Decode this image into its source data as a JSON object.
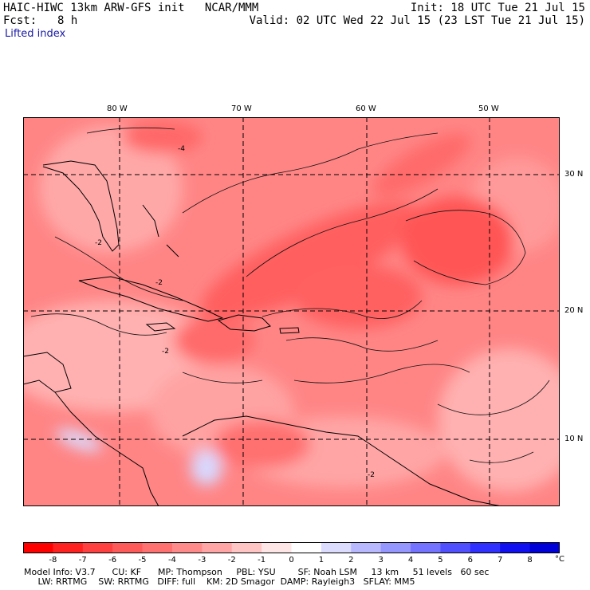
{
  "header": {
    "title": "HAIC-HIWC 13km ARW-GFS init   NCAR/MMM",
    "init": "Init: 18 UTC Tue 21 Jul 15",
    "fcst_label": "Fcst:",
    "fcst_value": "8 h",
    "valid": "Valid: 02 UTC Wed 22 Jul 15 (23 LST Tue 21 Jul 15)",
    "field": "Lifted index"
  },
  "map": {
    "lon_labels": [
      "80 W",
      "70 W",
      "60 W",
      "50 W"
    ],
    "lat_labels": [
      "30 N",
      "20 N",
      "10 N"
    ],
    "contour_labels": [
      "-4",
      "-2",
      "-2",
      "-2",
      "-2"
    ]
  },
  "colorbar": {
    "ticks": [
      "-8",
      "-7",
      "-6",
      "-5",
      "-4",
      "-3",
      "-2",
      "-1",
      "0",
      "1",
      "2",
      "3",
      "4",
      "5",
      "6",
      "7",
      "8"
    ],
    "unit": "°C",
    "colors": [
      "#ff0000",
      "#ff2020",
      "#ff4040",
      "#ff5a5a",
      "#ff7070",
      "#ff8a8a",
      "#ffa5a5",
      "#ffc5c5",
      "#ffe6e6",
      "#ffffff",
      "#dcdcff",
      "#b8b8ff",
      "#9696ff",
      "#7373ff",
      "#5050ff",
      "#3030ff",
      "#1010f0",
      "#0000d8"
    ]
  },
  "model_info": {
    "line1": "Model Info: V3.7      CU: KF      MP: Thompson     PBL: YSU        SF: Noah LSM     13 km     51 levels   60 sec",
    "line2": "     LW: RRTMG    SW: RRTMG   DIFF: full    KM: 2D Smagor  DAMP: Rayleigh3   SFLAY: MM5"
  }
}
